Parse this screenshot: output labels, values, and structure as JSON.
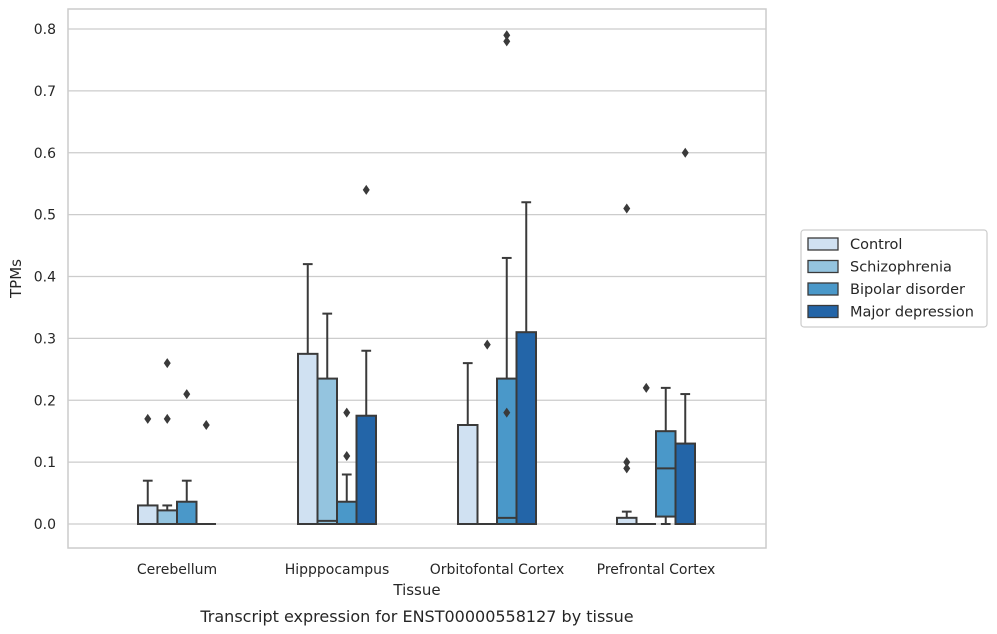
{
  "caption": "Transcript expression for ENST00000558127 by tissue",
  "chart_data": {
    "type": "box",
    "xlabel": "Tissue",
    "ylabel": "TPMs",
    "ylim": [
      -0.04,
      0.83
    ],
    "yticks": [
      "0.0",
      "0.1",
      "0.2",
      "0.3",
      "0.4",
      "0.5",
      "0.6",
      "0.7",
      "0.8"
    ],
    "grid": "horizontal",
    "legend_position": "right",
    "categories": [
      "Cerebellum",
      "Hipppocampus",
      "Orbitofontal Cortex",
      "Prefrontal Cortex"
    ],
    "series": [
      {
        "name": "Control",
        "color": "#d0e1f2",
        "boxes": [
          {
            "q1": 0.0,
            "median": 0.0,
            "q3": 0.03,
            "whisker_low": 0.0,
            "whisker_high": 0.07,
            "outliers": [
              0.17
            ]
          },
          {
            "q1": 0.0,
            "median": 0.0,
            "q3": 0.275,
            "whisker_low": 0.0,
            "whisker_high": 0.42,
            "outliers": []
          },
          {
            "q1": 0.0,
            "median": 0.0,
            "q3": 0.16,
            "whisker_low": 0.0,
            "whisker_high": 0.26,
            "outliers": []
          },
          {
            "q1": 0.0,
            "median": 0.0,
            "q3": 0.01,
            "whisker_low": 0.0,
            "whisker_high": 0.02,
            "outliers": [
              0.09,
              0.1,
              0.51
            ]
          }
        ]
      },
      {
        "name": "Schizophrenia",
        "color": "#94c4df",
        "boxes": [
          {
            "q1": 0.0,
            "median": 0.0,
            "q3": 0.022,
            "whisker_low": 0.0,
            "whisker_high": 0.03,
            "outliers": [
              0.17,
              0.26
            ]
          },
          {
            "q1": 0.0,
            "median": 0.005,
            "q3": 0.235,
            "whisker_low": 0.0,
            "whisker_high": 0.34,
            "outliers": []
          },
          {
            "q1": 0.0,
            "median": 0.0,
            "q3": 0.0,
            "whisker_low": 0.0,
            "whisker_high": 0.0,
            "outliers": [
              0.29
            ]
          },
          {
            "q1": 0.0,
            "median": 0.0,
            "q3": 0.0,
            "whisker_low": 0.0,
            "whisker_high": 0.0,
            "outliers": [
              0.22
            ]
          }
        ]
      },
      {
        "name": "Bipolar disorder",
        "color": "#4a98c9",
        "boxes": [
          {
            "q1": 0.0,
            "median": 0.0,
            "q3": 0.036,
            "whisker_low": 0.0,
            "whisker_high": 0.07,
            "outliers": [
              0.21
            ]
          },
          {
            "q1": 0.0,
            "median": 0.0,
            "q3": 0.036,
            "whisker_low": 0.0,
            "whisker_high": 0.08,
            "outliers": [
              0.11,
              0.18
            ]
          },
          {
            "q1": 0.0,
            "median": 0.01,
            "q3": 0.235,
            "whisker_low": 0.0,
            "whisker_high": 0.43,
            "outliers": [
              0.18,
              0.78,
              0.79
            ]
          },
          {
            "q1": 0.012,
            "median": 0.09,
            "q3": 0.15,
            "whisker_low": 0.0,
            "whisker_high": 0.22,
            "outliers": []
          }
        ]
      },
      {
        "name": "Major depression",
        "color": "#2365a8",
        "boxes": [
          {
            "q1": 0.0,
            "median": 0.0,
            "q3": 0.0,
            "whisker_low": 0.0,
            "whisker_high": 0.0,
            "outliers": [
              0.16
            ]
          },
          {
            "q1": 0.0,
            "median": 0.0,
            "q3": 0.175,
            "whisker_low": 0.0,
            "whisker_high": 0.28,
            "outliers": [
              0.54
            ]
          },
          {
            "q1": 0.0,
            "median": 0.0,
            "q3": 0.31,
            "whisker_low": 0.0,
            "whisker_high": 0.52,
            "outliers": []
          },
          {
            "q1": 0.0,
            "median": 0.0,
            "q3": 0.13,
            "whisker_low": 0.0,
            "whisker_high": 0.21,
            "outliers": [
              0.6
            ]
          }
        ]
      }
    ]
  }
}
